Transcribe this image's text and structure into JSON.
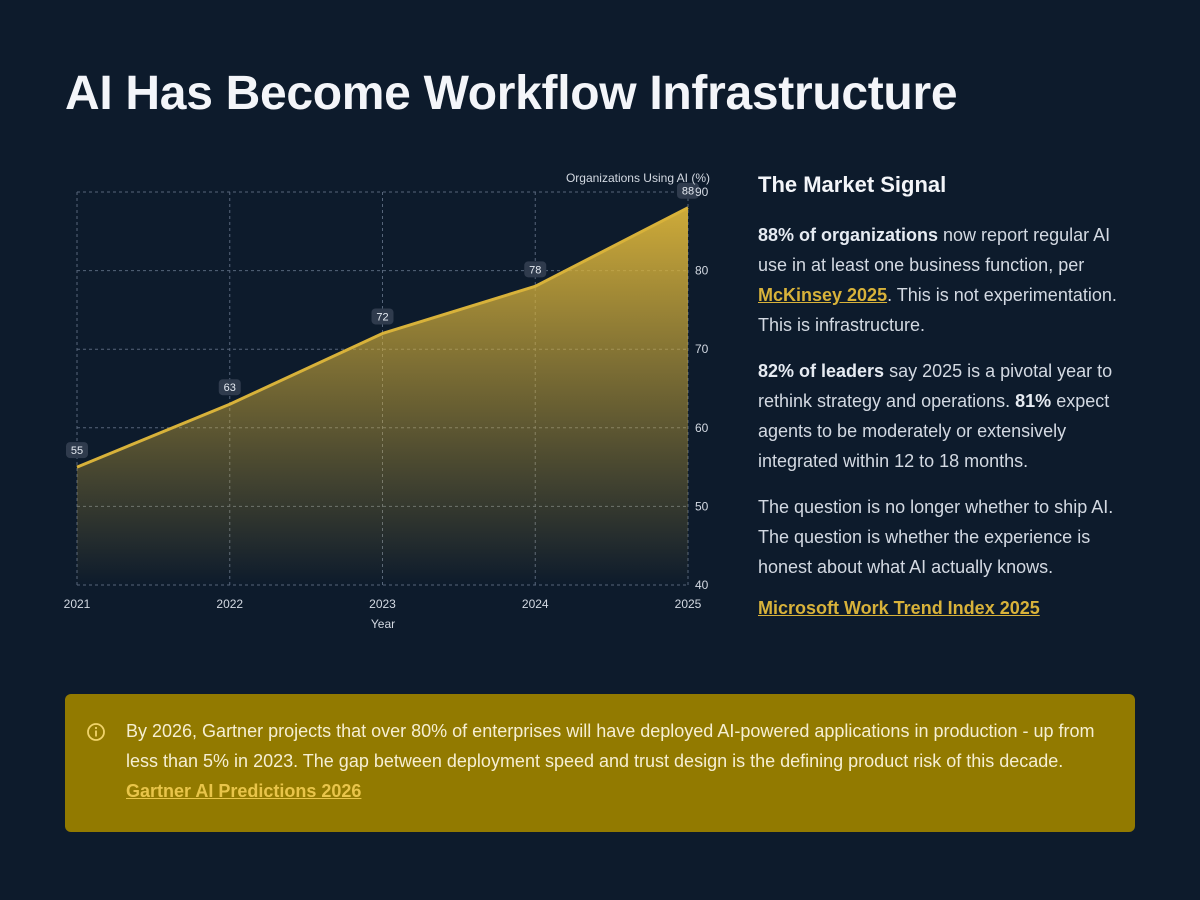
{
  "title": "AI Has Become Workflow Infrastructure",
  "colors": {
    "background": "#0d1b2c",
    "accent": "#d8b23a",
    "callout_bg": "#927a00"
  },
  "chart_data": {
    "type": "area",
    "x": [
      "2021",
      "2022",
      "2023",
      "2024",
      "2025"
    ],
    "values": [
      55,
      63,
      72,
      78,
      88
    ],
    "data_labels": [
      "55",
      "63",
      "72",
      "78",
      "88"
    ],
    "ylabel": "Organizations Using AI (%)",
    "xlabel": "Year",
    "ylim": [
      40,
      90
    ],
    "yticks": [
      "40",
      "50",
      "60",
      "70",
      "80",
      "90"
    ],
    "y_axis_position": "right",
    "grid": true,
    "line_color": "#d8b23a"
  },
  "side": {
    "heading": "The Market Signal",
    "p1": {
      "bold": "88% of organizations",
      "text1": " now report regular AI use in at least one business function, per ",
      "link": "McKinsey 2025",
      "text2": ". This is not experimentation. This is infrastructure."
    },
    "p2": {
      "bold1": "82% of leaders",
      "text1": " say 2025 is a pivotal year to rethink strategy and operations. ",
      "bold2": "81%",
      "text2": " expect agents to be moderately or extensively integrated within 12 to 18 months."
    },
    "p3": "The question is no longer whether to ship AI. The question is whether the experience is honest about what AI actually knows.",
    "source_link": "Microsoft Work Trend Index 2025"
  },
  "callout": {
    "icon": "info-icon",
    "text": "By 2026, Gartner projects that over 80% of enterprises will have deployed AI-powered applications in production - up from less than 5% in 2023. The gap between deployment speed and trust design is the defining product risk of this decade. ",
    "link": "Gartner AI Predictions 2026"
  }
}
